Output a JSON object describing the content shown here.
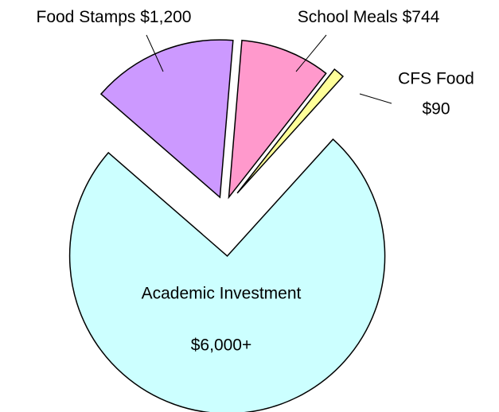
{
  "chart_data": {
    "type": "pie",
    "categories": [
      "Food Stamps",
      "School Meals",
      "CFS Food",
      "Academic Investment"
    ],
    "values": [
      1200,
      744,
      90,
      6000
    ],
    "value_labels": [
      "$1,200",
      "$744",
      "$90",
      "$6,000+"
    ],
    "colors": [
      "#cc99ff",
      "#ff99cc",
      "#ffff99",
      "#ccffff"
    ]
  }
}
